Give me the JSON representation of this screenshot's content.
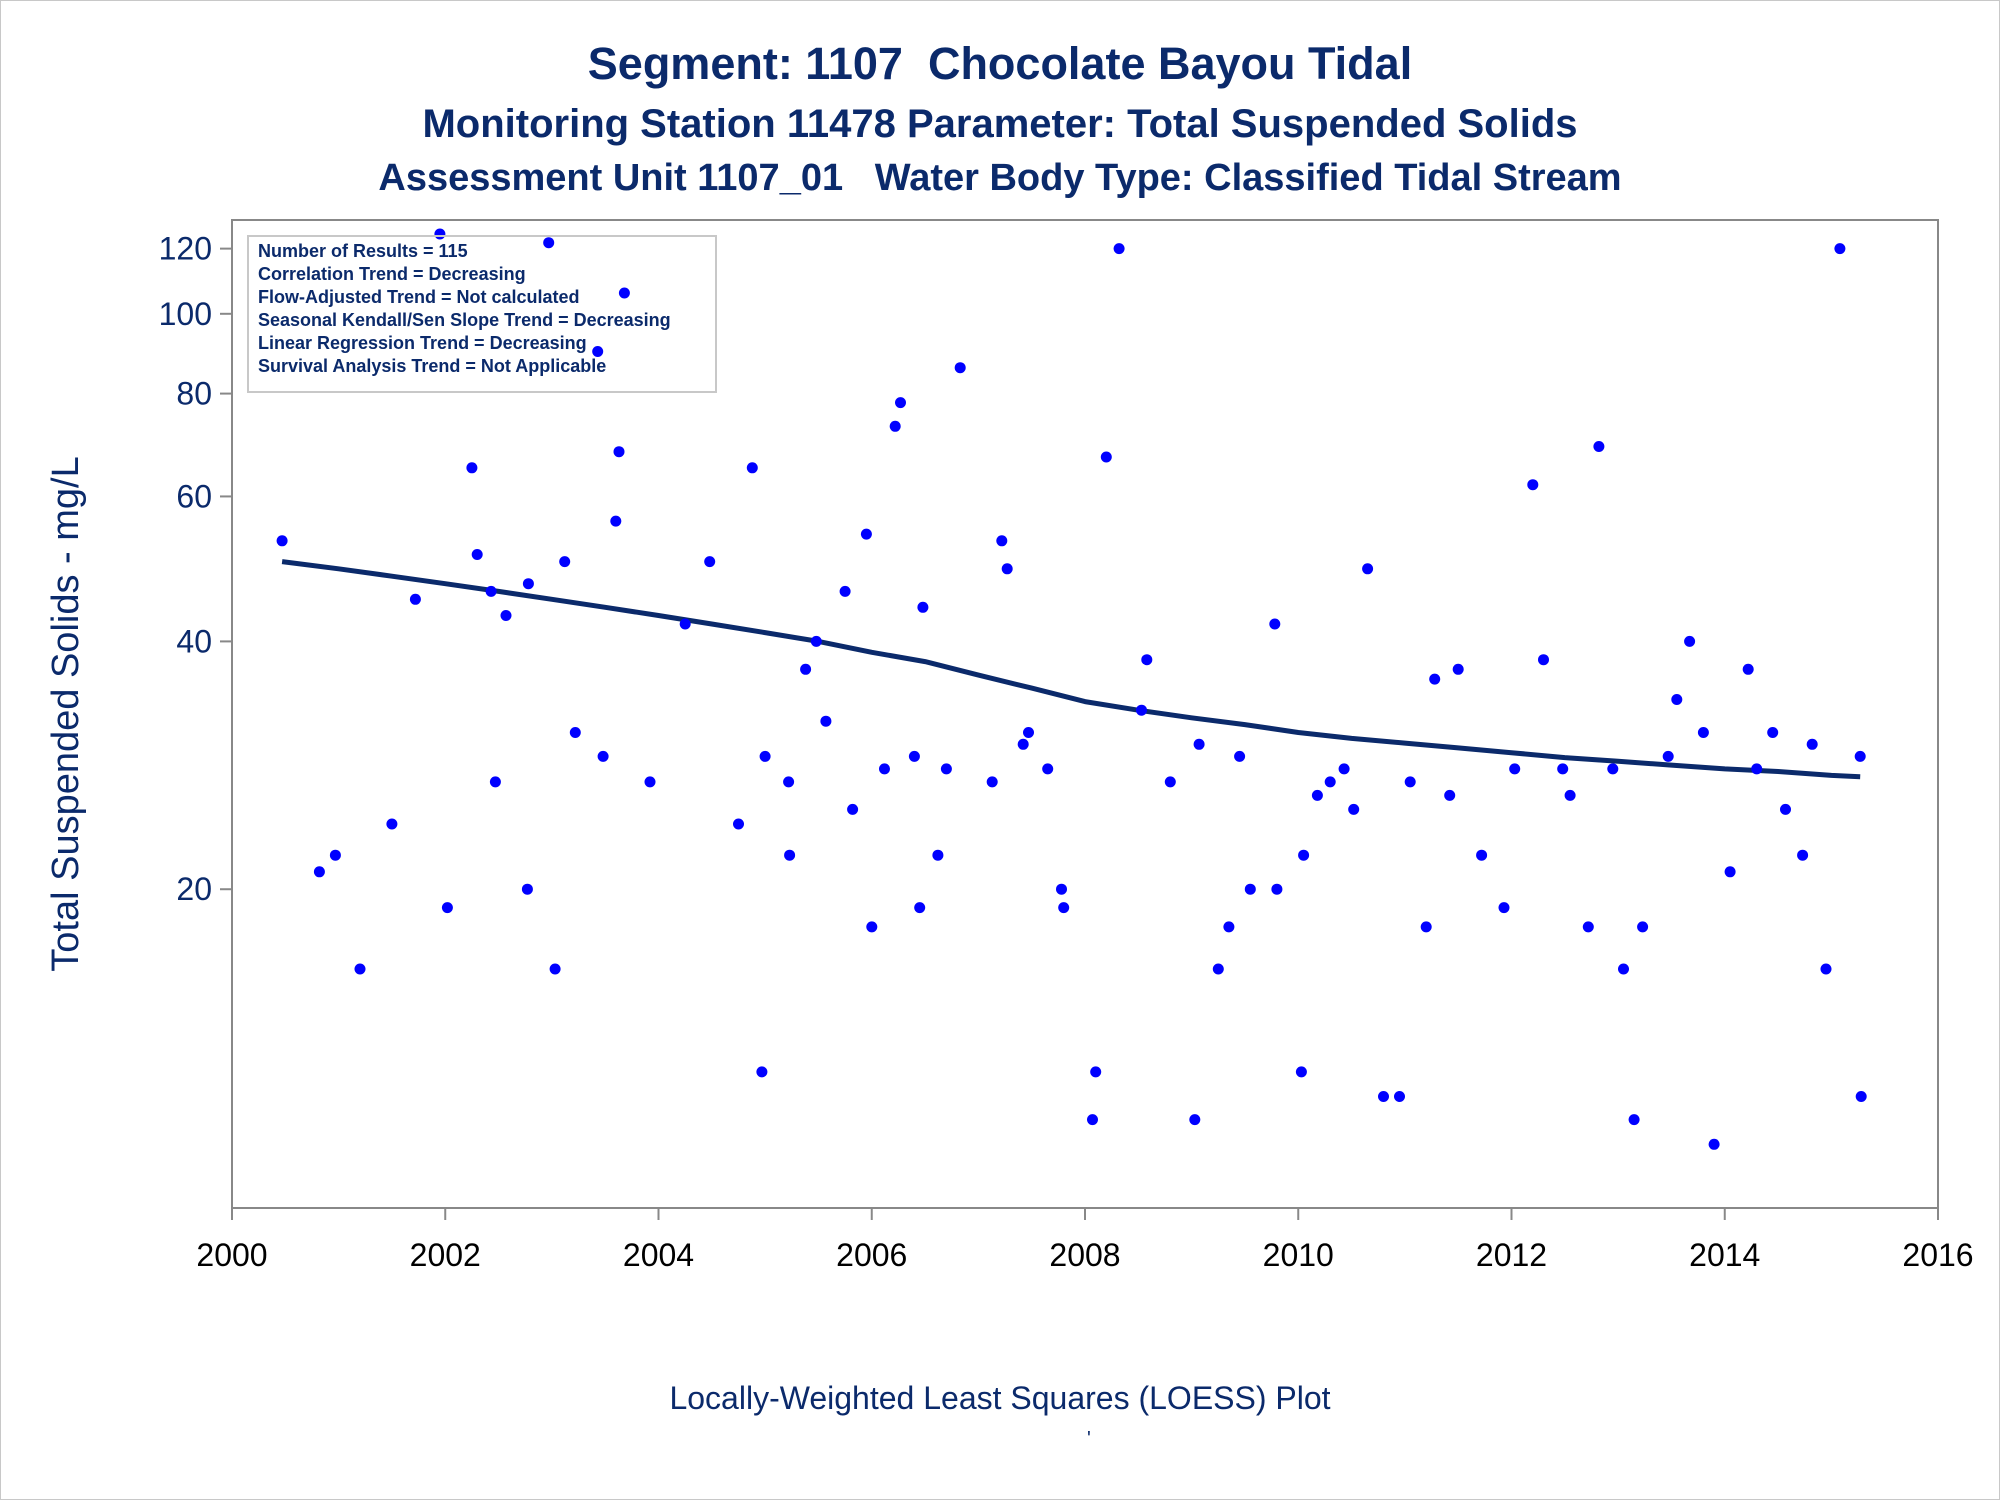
{
  "page": {
    "title_line1": "Segment: 1107  Chocolate Bayou Tidal",
    "title_line2": "Monitoring Station 11478 Parameter: Total Suspended Solids",
    "title_line3": "Assessment Unit 1107_01   Water Body Type: Classified Tidal Stream",
    "footnote": "Locally-Weighted Least Squares (LOESS) Plot",
    "footnote_mark": "'"
  },
  "info_box": [
    "Number of Results = 115",
    "Correlation Trend = Decreasing",
    "Flow-Adjusted Trend = Not calculated",
    "Seasonal Kendall/Sen Slope Trend = Decreasing",
    "Linear Regression Trend = Decreasing",
    "Survival Analysis Trend = Not Applicable"
  ],
  "colors": {
    "text": "#0b2a6b",
    "points": "#0000ff",
    "loess_line": "#0b2a6b",
    "axis": "#888888"
  },
  "chart_data": {
    "type": "scatter",
    "title": "Segment: 1107  Chocolate Bayou Tidal",
    "xlabel": "",
    "ylabel": "Total Suspended Solids - mg/L",
    "y_scale": "log",
    "xlim": [
      2000,
      2016
    ],
    "ylim": [
      8.2,
      130
    ],
    "x_ticks": [
      2000,
      2002,
      2004,
      2006,
      2008,
      2010,
      2012,
      2014,
      2016
    ],
    "y_ticks": [
      20,
      40,
      60,
      80,
      100,
      120
    ],
    "grid": false,
    "legend": "top-left",
    "series": [
      {
        "type": "scatter",
        "points": [
          [
            2000.47,
            53
          ],
          [
            2000.82,
            21
          ],
          [
            2000.97,
            22
          ],
          [
            2001.2,
            16
          ],
          [
            2001.5,
            24
          ],
          [
            2001.72,
            45
          ],
          [
            2001.95,
            125
          ],
          [
            2002.02,
            19
          ],
          [
            2002.25,
            65
          ],
          [
            2002.3,
            51
          ],
          [
            2002.43,
            46
          ],
          [
            2002.47,
            27
          ],
          [
            2002.57,
            43
          ],
          [
            2002.77,
            20
          ],
          [
            2002.78,
            47
          ],
          [
            2002.97,
            122
          ],
          [
            2003.03,
            16
          ],
          [
            2003.12,
            50
          ],
          [
            2003.22,
            31
          ],
          [
            2003.43,
            90
          ],
          [
            2003.48,
            29
          ],
          [
            2003.6,
            56
          ],
          [
            2003.63,
            68
          ],
          [
            2003.68,
            106
          ],
          [
            2003.92,
            27
          ],
          [
            2004.25,
            42
          ],
          [
            2004.48,
            50
          ],
          [
            2004.75,
            24
          ],
          [
            2004.88,
            65
          ],
          [
            2004.97,
            12
          ],
          [
            2005.0,
            29
          ],
          [
            2005.22,
            27
          ],
          [
            2005.23,
            22
          ],
          [
            2005.38,
            37
          ],
          [
            2005.48,
            40
          ],
          [
            2005.57,
            32
          ],
          [
            2005.75,
            46
          ],
          [
            2005.82,
            25
          ],
          [
            2005.95,
            54
          ],
          [
            2006.0,
            18
          ],
          [
            2006.12,
            28
          ],
          [
            2006.22,
            73
          ],
          [
            2006.27,
            78
          ],
          [
            2006.4,
            29
          ],
          [
            2006.45,
            19
          ],
          [
            2006.48,
            44
          ],
          [
            2006.62,
            22
          ],
          [
            2006.7,
            28
          ],
          [
            2006.83,
            86
          ],
          [
            2007.13,
            27
          ],
          [
            2007.22,
            53
          ],
          [
            2007.27,
            49
          ],
          [
            2007.42,
            30
          ],
          [
            2007.47,
            31
          ],
          [
            2007.65,
            28
          ],
          [
            2007.78,
            20
          ],
          [
            2007.8,
            19
          ],
          [
            2008.07,
            10.5
          ],
          [
            2008.1,
            12
          ],
          [
            2008.2,
            67
          ],
          [
            2008.32,
            120
          ],
          [
            2008.53,
            33
          ],
          [
            2008.58,
            38
          ],
          [
            2008.8,
            27
          ],
          [
            2009.03,
            10.5
          ],
          [
            2009.07,
            30
          ],
          [
            2009.25,
            16
          ],
          [
            2009.35,
            18
          ],
          [
            2009.45,
            29
          ],
          [
            2009.55,
            20
          ],
          [
            2009.78,
            42
          ],
          [
            2009.8,
            20
          ],
          [
            2010.03,
            12
          ],
          [
            2010.05,
            22
          ],
          [
            2010.18,
            26
          ],
          [
            2010.3,
            27
          ],
          [
            2010.43,
            28
          ],
          [
            2010.52,
            25
          ],
          [
            2010.65,
            49
          ],
          [
            2010.8,
            11.2
          ],
          [
            2010.95,
            11.2
          ],
          [
            2011.05,
            27
          ],
          [
            2011.2,
            18
          ],
          [
            2011.28,
            36
          ],
          [
            2011.42,
            26
          ],
          [
            2011.5,
            37
          ],
          [
            2011.72,
            22
          ],
          [
            2011.93,
            19
          ],
          [
            2012.03,
            28
          ],
          [
            2012.2,
            62
          ],
          [
            2012.3,
            38
          ],
          [
            2012.48,
            28
          ],
          [
            2012.55,
            26
          ],
          [
            2012.72,
            18
          ],
          [
            2012.82,
            69
          ],
          [
            2012.95,
            28
          ],
          [
            2013.05,
            16
          ],
          [
            2013.15,
            10.5
          ],
          [
            2013.23,
            18
          ],
          [
            2013.47,
            29
          ],
          [
            2013.55,
            34
          ],
          [
            2013.67,
            40
          ],
          [
            2013.8,
            31
          ],
          [
            2013.9,
            9.8
          ],
          [
            2014.05,
            21
          ],
          [
            2014.22,
            37
          ],
          [
            2014.3,
            28
          ],
          [
            2014.45,
            31
          ],
          [
            2014.57,
            25
          ],
          [
            2014.73,
            22
          ],
          [
            2014.82,
            30
          ],
          [
            2014.95,
            16
          ],
          [
            2015.08,
            120
          ],
          [
            2015.27,
            29
          ],
          [
            2015.28,
            11.2
          ]
        ]
      },
      {
        "type": "line",
        "points": [
          [
            2000.47,
            50
          ],
          [
            2001.0,
            49
          ],
          [
            2001.5,
            48
          ],
          [
            2002.0,
            47
          ],
          [
            2002.5,
            46
          ],
          [
            2003.0,
            45
          ],
          [
            2003.5,
            44
          ],
          [
            2004.0,
            43
          ],
          [
            2004.5,
            42
          ],
          [
            2005.0,
            41
          ],
          [
            2005.5,
            40
          ],
          [
            2006.0,
            38.8
          ],
          [
            2006.5,
            37.8
          ],
          [
            2007.0,
            36.4
          ],
          [
            2007.5,
            35.1
          ],
          [
            2008.0,
            33.8
          ],
          [
            2008.5,
            33.0
          ],
          [
            2009.0,
            32.3
          ],
          [
            2009.5,
            31.7
          ],
          [
            2010.0,
            31.0
          ],
          [
            2010.5,
            30.5
          ],
          [
            2011.0,
            30.1
          ],
          [
            2011.5,
            29.7
          ],
          [
            2012.0,
            29.3
          ],
          [
            2012.5,
            28.9
          ],
          [
            2013.0,
            28.6
          ],
          [
            2013.5,
            28.3
          ],
          [
            2014.0,
            28.0
          ],
          [
            2014.5,
            27.8
          ],
          [
            2015.0,
            27.5
          ],
          [
            2015.27,
            27.4
          ]
        ]
      }
    ]
  }
}
